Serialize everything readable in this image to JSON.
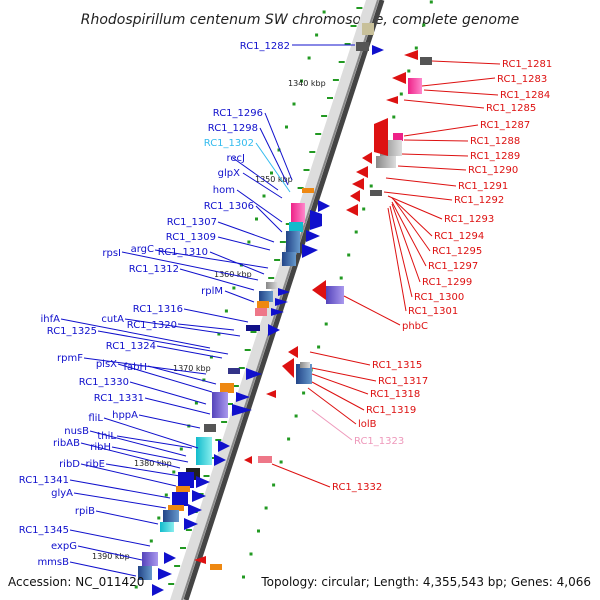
{
  "title": "Rhodospirillum centenum SW chromosome, complete genome",
  "footer": {
    "accession": "Accession: NC_011420",
    "summary": "Topology: circular; Length: 4,355,543 bp; Genes: 4,066"
  },
  "colors": {
    "forward": "#1010cc",
    "reverse": "#dd1111",
    "highlight_forward": "#33bbee",
    "highlight_reverse": "#ee99bb",
    "axis": "#888888",
    "tick": "#229922"
  },
  "kbp_marks": [
    {
      "label": "1340 kbp"
    },
    {
      "label": "1350 kbp"
    },
    {
      "label": "1360 kbp"
    },
    {
      "label": "1370 kbp"
    },
    {
      "label": "1380 kbp"
    },
    {
      "label": "1390 kbp"
    }
  ],
  "left_labels": [
    {
      "text": "RC1_1282"
    },
    {
      "text": "RC1_1296"
    },
    {
      "text": "RC1_1298"
    },
    {
      "text": "RC1_1302"
    },
    {
      "text": "recJ"
    },
    {
      "text": "glpX"
    },
    {
      "text": "hom"
    },
    {
      "text": "RC1_1306"
    },
    {
      "text": "RC1_1307"
    },
    {
      "text": "RC1_1309"
    },
    {
      "text": "argC"
    },
    {
      "text": "rpsI"
    },
    {
      "text": "RC1_1310"
    },
    {
      "text": "RC1_1312"
    },
    {
      "text": "rplM"
    },
    {
      "text": "RC1_1316"
    },
    {
      "text": "cutA"
    },
    {
      "text": "ihfA"
    },
    {
      "text": "RC1_1320"
    },
    {
      "text": "RC1_1325"
    },
    {
      "text": "RC1_1324"
    },
    {
      "text": "rpmF"
    },
    {
      "text": "plsX"
    },
    {
      "text": "fabH"
    },
    {
      "text": "RC1_1330"
    },
    {
      "text": "RC1_1331"
    },
    {
      "text": "hppA"
    },
    {
      "text": "fliL"
    },
    {
      "text": "nusB"
    },
    {
      "text": "thiL"
    },
    {
      "text": "ribAB"
    },
    {
      "text": "ribH"
    },
    {
      "text": "ribD"
    },
    {
      "text": "ribE"
    },
    {
      "text": "RC1_1341"
    },
    {
      "text": "glyA"
    },
    {
      "text": "rpiB"
    },
    {
      "text": "RC1_1345"
    },
    {
      "text": "expG"
    },
    {
      "text": "mmsB"
    }
  ],
  "right_labels": [
    {
      "text": "RC1_1281"
    },
    {
      "text": "RC1_1283"
    },
    {
      "text": "RC1_1284"
    },
    {
      "text": "RC1_1285"
    },
    {
      "text": "RC1_1287"
    },
    {
      "text": "RC1_1288"
    },
    {
      "text": "RC1_1289"
    },
    {
      "text": "RC1_1290"
    },
    {
      "text": "RC1_1291"
    },
    {
      "text": "RC1_1292"
    },
    {
      "text": "RC1_1293"
    },
    {
      "text": "RC1_1294"
    },
    {
      "text": "RC1_1295"
    },
    {
      "text": "RC1_1297"
    },
    {
      "text": "RC1_1299"
    },
    {
      "text": "RC1_1300"
    },
    {
      "text": "RC1_1301"
    },
    {
      "text": "phbC"
    },
    {
      "text": "RC1_1315"
    },
    {
      "text": "RC1_1317"
    },
    {
      "text": "RC1_1318"
    },
    {
      "text": "RC1_1319"
    },
    {
      "text": "lolB"
    },
    {
      "text": "RC1_1323"
    },
    {
      "text": "RC1_1332"
    }
  ]
}
